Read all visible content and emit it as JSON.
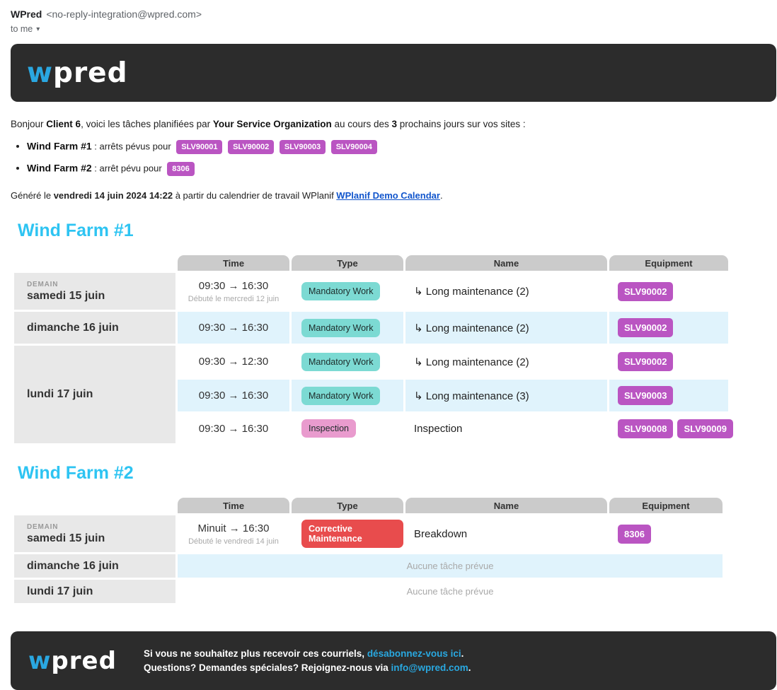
{
  "colors": {
    "dark_bg": "#2c2c2c",
    "logo_blue": "#2aa7e1",
    "accent_cyan": "#2ec4f2",
    "badge_purple": "#ba55c2",
    "badge_teal": "#7cdad3",
    "badge_pink": "#e99bce",
    "badge_red": "#e84c4d",
    "row_highlight": "#e0f3fc",
    "header_cell_gray": "#cbcbcb",
    "date_cell_gray": "#e8e8e8",
    "link_blue": "#1155cc",
    "footer_link_blue": "#29a8e0"
  },
  "email_header": {
    "sender_name": "WPred",
    "sender_address": "<no-reply-integration@wpred.com>",
    "to_label": "to me",
    "expand_icon": "▾"
  },
  "logo": {
    "prefix": "w",
    "suffix": "pred"
  },
  "intro": {
    "part1": "Bonjour ",
    "client": "Client 6",
    "part2": ", voici les tâches planifiées par ",
    "organization": "Your Service Organization",
    "part3": " au cours des ",
    "days_count": "3",
    "part4": " prochains jours sur vos sites :"
  },
  "bullets": [
    {
      "site": "Wind Farm #1",
      "text": " : arrêts pévus pour",
      "badges": [
        "SLV90001",
        "SLV90002",
        "SLV90003",
        "SLV90004"
      ]
    },
    {
      "site": "Wind Farm #2",
      "text": " : arrêt pévu pour",
      "badges": [
        "8306"
      ]
    }
  ],
  "generated": {
    "part1": "Généré le ",
    "timestamp": "vendredi 14 juin 2024 14:22",
    "part2": " à partir du calendrier de travail WPlanif ",
    "link_label": "WPlanif Demo Calendar",
    "part3": "."
  },
  "table_columns": [
    "Time",
    "Type",
    "Name",
    "Equipment"
  ],
  "sections": [
    {
      "title": "Wind Farm #1",
      "day_groups": [
        {
          "badge": "DEMAIN",
          "date": "samedi 15 juin",
          "tasks": [
            {
              "time": "09:30 → 16:30",
              "time_note": "Débuté le mercredi 12 juin",
              "type": "Mandatory Work",
              "name": "↳ Long maintenance (2)",
              "equipment": [
                "SLV90002"
              ]
            }
          ]
        },
        {
          "date": "dimanche 16 juin",
          "tasks": [
            {
              "time": "09:30 → 16:30",
              "type": "Mandatory Work",
              "name": "↳ Long maintenance (2)",
              "equipment": [
                "SLV90002"
              ]
            }
          ]
        },
        {
          "date": "lundi 17 juin",
          "tasks": [
            {
              "time": "09:30 → 12:30",
              "type": "Mandatory Work",
              "name": "↳ Long maintenance (2)",
              "equipment": [
                "SLV90002"
              ]
            },
            {
              "time": "09:30 → 16:30",
              "type": "Mandatory Work",
              "name": "↳ Long maintenance (3)",
              "equipment": [
                "SLV90003"
              ]
            },
            {
              "time": "09:30 → 16:30",
              "type": "Inspection",
              "name": "Inspection",
              "equipment": [
                "SLV90008",
                "SLV90009"
              ]
            }
          ]
        }
      ]
    },
    {
      "title": "Wind Farm #2",
      "day_groups": [
        {
          "badge": "DEMAIN",
          "date": "samedi 15 juin",
          "tasks": [
            {
              "time": "Minuit → 16:30",
              "time_note": "Débuté le vendredi 14 juin",
              "type": "Corrective Maintenance",
              "name": "Breakdown",
              "equipment": [
                "8306"
              ]
            }
          ]
        },
        {
          "date": "dimanche 16 juin",
          "empty": "Aucune tâche prévue"
        },
        {
          "date": "lundi 17 juin",
          "empty": "Aucune tâche prévue"
        }
      ]
    }
  ],
  "footer": {
    "line1_part1": "Si vous ne souhaitez plus recevoir ces courriels, ",
    "line1_link": "désabonnez-vous ici",
    "line1_part3": ".",
    "line2_part1": "Questions? Demandes spéciales? Rejoignez-nous via ",
    "line2_link": "info@wpred.com",
    "line2_part3": "."
  }
}
